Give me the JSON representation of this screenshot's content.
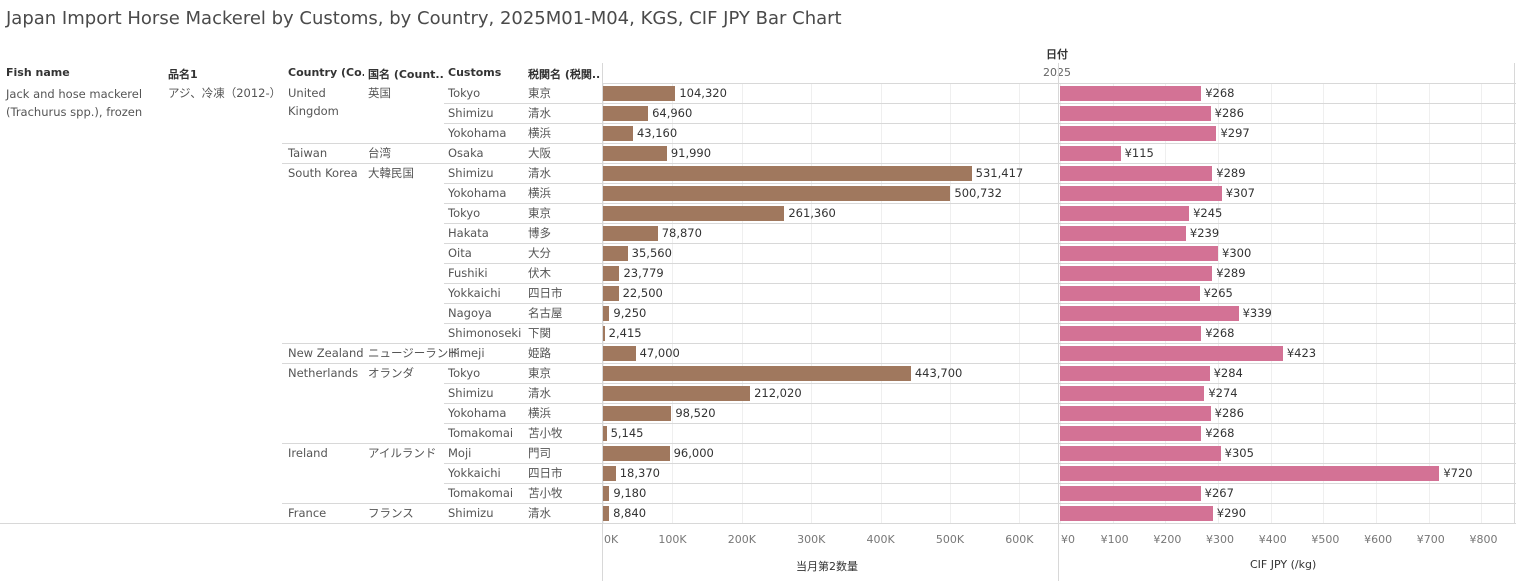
{
  "title": "Japan Import Horse Mackerel by Customs, by Country, 2025M01-M04, KGS, CIF JPY Bar Chart",
  "headers": {
    "fish_name": "Fish name",
    "hinmei": "品名1",
    "country": "Country (Co..",
    "kokumei": "国名 (Count..",
    "customs": "Customs",
    "zeikan": "税関名 (税関..",
    "date_field": "日付",
    "date_value": "2025"
  },
  "fish": {
    "name": "Jack and hose mackerel (Trachurus spp.), frozen",
    "hinmei": "アジ、冷凍（2012-）"
  },
  "groups": [
    {
      "country": "United Kingdom",
      "kokumei": "英国",
      "start": 0,
      "count": 3
    },
    {
      "country": "Taiwan",
      "kokumei": "台湾",
      "start": 3,
      "count": 1
    },
    {
      "country": "South Korea",
      "kokumei": "大韓民国",
      "start": 4,
      "count": 9
    },
    {
      "country": "New Zealand",
      "kokumei": "ニュージーランド",
      "start": 13,
      "count": 1
    },
    {
      "country": "Netherlands",
      "kokumei": "オランダ",
      "start": 14,
      "count": 4
    },
    {
      "country": "Ireland",
      "kokumei": "アイルランド",
      "start": 18,
      "count": 3
    },
    {
      "country": "France",
      "kokumei": "フランス",
      "start": 21,
      "count": 1
    }
  ],
  "chart_data": {
    "type": "bar",
    "orientation": "horizontal",
    "rows": [
      {
        "customs": "Tokyo",
        "zeikan": "東京",
        "quantity": 104320,
        "quantity_label": "104,320",
        "cif": 268,
        "cif_label": "¥268"
      },
      {
        "customs": "Shimizu",
        "zeikan": "清水",
        "quantity": 64960,
        "quantity_label": "64,960",
        "cif": 286,
        "cif_label": "¥286"
      },
      {
        "customs": "Yokohama",
        "zeikan": "横浜",
        "quantity": 43160,
        "quantity_label": "43,160",
        "cif": 297,
        "cif_label": "¥297"
      },
      {
        "customs": "Osaka",
        "zeikan": "大阪",
        "quantity": 91990,
        "quantity_label": "91,990",
        "cif": 115,
        "cif_label": "¥115"
      },
      {
        "customs": "Shimizu",
        "zeikan": "清水",
        "quantity": 531417,
        "quantity_label": "531,417",
        "cif": 289,
        "cif_label": "¥289"
      },
      {
        "customs": "Yokohama",
        "zeikan": "横浜",
        "quantity": 500732,
        "quantity_label": "500,732",
        "cif": 307,
        "cif_label": "¥307"
      },
      {
        "customs": "Tokyo",
        "zeikan": "東京",
        "quantity": 261360,
        "quantity_label": "261,360",
        "cif": 245,
        "cif_label": "¥245"
      },
      {
        "customs": "Hakata",
        "zeikan": "博多",
        "quantity": 78870,
        "quantity_label": "78,870",
        "cif": 239,
        "cif_label": "¥239"
      },
      {
        "customs": "Oita",
        "zeikan": "大分",
        "quantity": 35560,
        "quantity_label": "35,560",
        "cif": 300,
        "cif_label": "¥300"
      },
      {
        "customs": "Fushiki",
        "zeikan": "伏木",
        "quantity": 23779,
        "quantity_label": "23,779",
        "cif": 289,
        "cif_label": "¥289"
      },
      {
        "customs": "Yokkaichi",
        "zeikan": "四日市",
        "quantity": 22500,
        "quantity_label": "22,500",
        "cif": 265,
        "cif_label": "¥265"
      },
      {
        "customs": "Nagoya",
        "zeikan": "名古屋",
        "quantity": 9250,
        "quantity_label": "9,250",
        "cif": 339,
        "cif_label": "¥339"
      },
      {
        "customs": "Shimonoseki",
        "zeikan": "下関",
        "quantity": 2415,
        "quantity_label": "2,415",
        "cif": 268,
        "cif_label": "¥268"
      },
      {
        "customs": "Himeji",
        "zeikan": "姫路",
        "quantity": 47000,
        "quantity_label": "47,000",
        "cif": 423,
        "cif_label": "¥423"
      },
      {
        "customs": "Tokyo",
        "zeikan": "東京",
        "quantity": 443700,
        "quantity_label": "443,700",
        "cif": 284,
        "cif_label": "¥284"
      },
      {
        "customs": "Shimizu",
        "zeikan": "清水",
        "quantity": 212020,
        "quantity_label": "212,020",
        "cif": 274,
        "cif_label": "¥274"
      },
      {
        "customs": "Yokohama",
        "zeikan": "横浜",
        "quantity": 98520,
        "quantity_label": "98,520",
        "cif": 286,
        "cif_label": "¥286"
      },
      {
        "customs": "Tomakomai",
        "zeikan": "苫小牧",
        "quantity": 5145,
        "quantity_label": "5,145",
        "cif": 268,
        "cif_label": "¥268"
      },
      {
        "customs": "Moji",
        "zeikan": "門司",
        "quantity": 96000,
        "quantity_label": "96,000",
        "cif": 305,
        "cif_label": "¥305"
      },
      {
        "customs": "Yokkaichi",
        "zeikan": "四日市",
        "quantity": 18370,
        "quantity_label": "18,370",
        "cif": 720,
        "cif_label": "¥720"
      },
      {
        "customs": "Tomakomai",
        "zeikan": "苫小牧",
        "quantity": 9180,
        "quantity_label": "9,180",
        "cif": 267,
        "cif_label": "¥267"
      },
      {
        "customs": "Shimizu",
        "zeikan": "清水",
        "quantity": 8840,
        "quantity_label": "8,840",
        "cif": 290,
        "cif_label": "¥290"
      }
    ],
    "axis1": {
      "title": "当月第2数量",
      "range": [
        0,
        640000
      ],
      "ticks": [
        0,
        100000,
        200000,
        300000,
        400000,
        500000,
        600000
      ],
      "tick_labels": [
        "0K",
        "100K",
        "200K",
        "300K",
        "400K",
        "500K",
        "600K"
      ],
      "color": "#a0785e"
    },
    "axis2": {
      "title": "CIF JPY (/kg)",
      "range": [
        0,
        820
      ],
      "ticks": [
        0,
        100,
        200,
        300,
        400,
        500,
        600,
        700,
        800
      ],
      "tick_labels": [
        "¥0",
        "¥100",
        "¥200",
        "¥300",
        "¥400",
        "¥500",
        "¥600",
        "¥700",
        "¥800"
      ],
      "color": "#d37295"
    },
    "grid": true
  }
}
